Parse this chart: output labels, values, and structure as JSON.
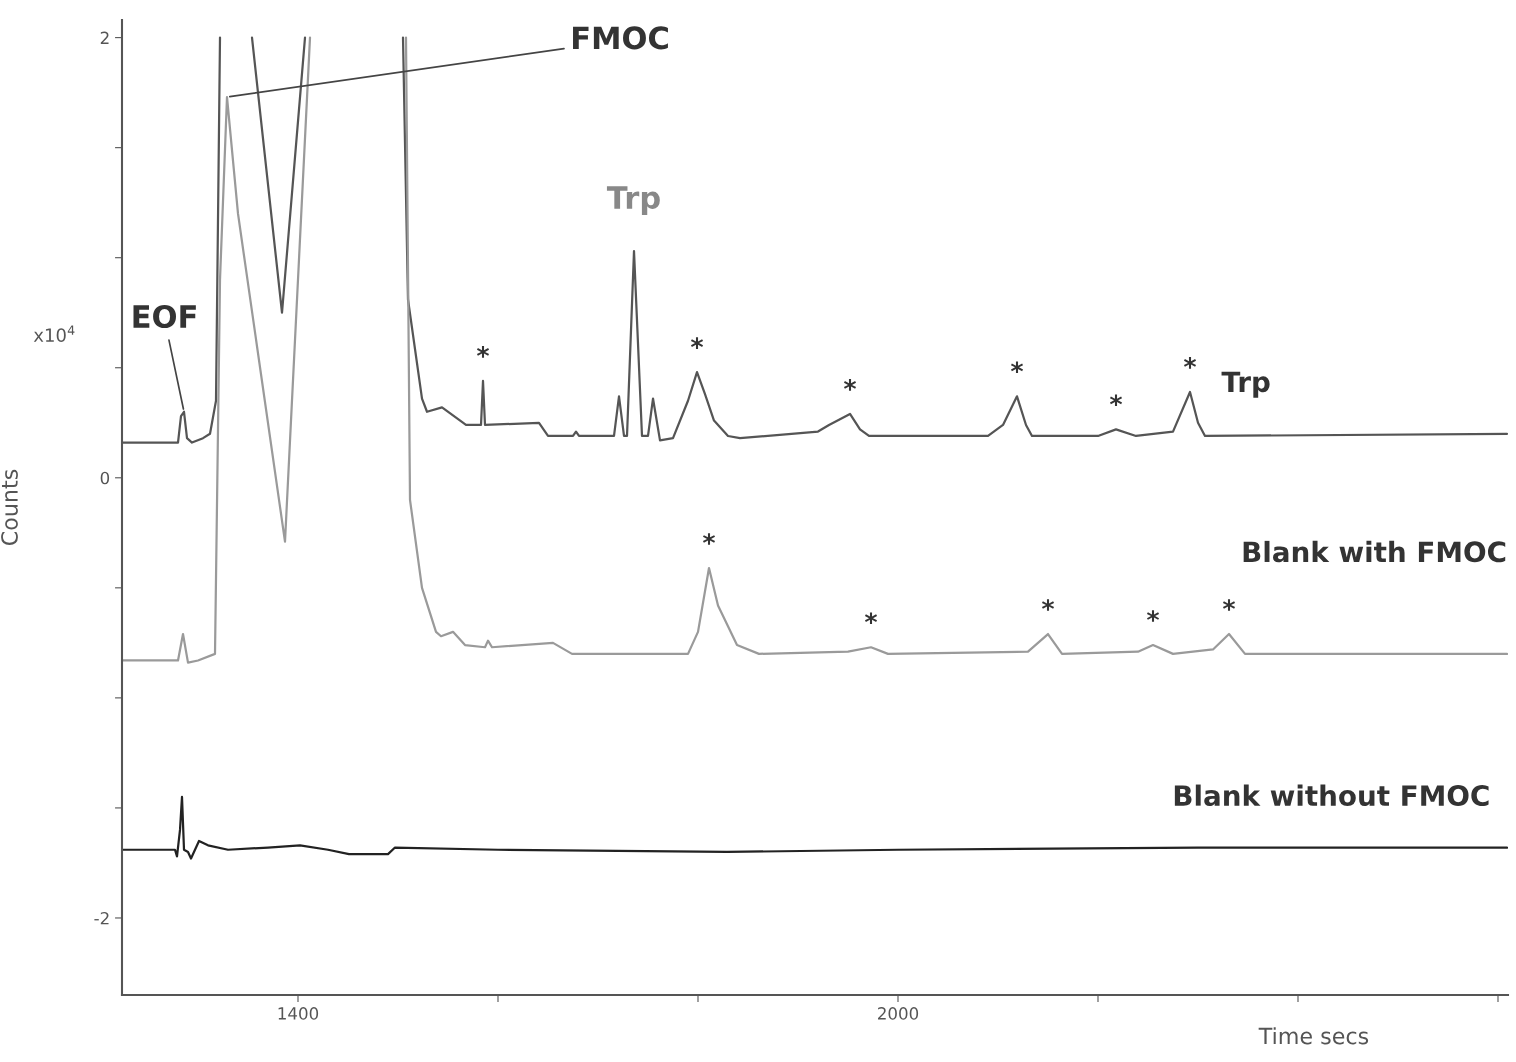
{
  "chart_data": {
    "type": "line",
    "xlabel": "Time secs",
    "ylabel": "Counts",
    "xlim": [
      1224,
      2610
    ],
    "ylim": [
      -2.35,
      2.08
    ],
    "xticks": [
      1400,
      {
        "value": 1600,
        "label": null
      },
      {
        "value": 1800,
        "label": null
      },
      2000,
      {
        "value": 2200,
        "label": null
      },
      {
        "value": 2400,
        "label": null
      },
      {
        "value": 2600,
        "label": null
      }
    ],
    "yticks": [
      -2,
      {
        "value": -1.5,
        "label": null
      },
      {
        "value": -1,
        "label": null
      },
      {
        "value": -0.5,
        "label": null
      },
      0,
      {
        "value": 0.5,
        "label": null
      },
      {
        "value": 1,
        "label": null
      },
      {
        "value": 1.5,
        "label": null
      },
      2
    ],
    "grid": false,
    "series": [
      {
        "name": "Trp",
        "color": "#555555",
        "x": [
          1224,
          1280,
          1283,
          1286,
          1289,
          1294,
          1305,
          1312,
          1318,
          1322,
          1338,
          1354,
          1384,
          1407,
          1455,
          1505,
          1510,
          1524,
          1529,
          1544,
          1568,
          1583,
          1585,
          1587,
          1641,
          1650,
          1675,
          1678,
          1681,
          1716,
          1721,
          1726,
          1729,
          1736,
          1744,
          1750,
          1755,
          1762,
          1775,
          1790,
          1799,
          1807,
          1816,
          1830,
          1842,
          1920,
          1931,
          1952,
          1962,
          1971,
          2090,
          2105,
          2119,
          2128,
          2134,
          2200,
          2218,
          2238,
          2275,
          2292,
          2300,
          2307,
          2609
        ],
        "values": [
          0.16,
          0.16,
          0.28,
          0.3,
          0.18,
          0.16,
          0.18,
          0.2,
          0.35,
          2.0,
          null,
          2.0,
          0.75,
          2.0,
          null,
          2.0,
          0.81,
          0.36,
          0.3,
          0.32,
          0.24,
          0.24,
          0.44,
          0.24,
          0.25,
          0.19,
          0.19,
          0.21,
          0.19,
          0.19,
          0.37,
          0.19,
          0.19,
          1.03,
          0.19,
          0.19,
          0.36,
          0.17,
          0.18,
          0.35,
          0.48,
          0.38,
          0.26,
          0.19,
          0.18,
          0.21,
          0.24,
          0.29,
          0.22,
          0.19,
          0.19,
          0.24,
          0.37,
          0.24,
          0.19,
          0.19,
          0.22,
          0.19,
          0.21,
          0.39,
          0.25,
          0.19,
          0.2
        ]
      },
      {
        "name": "Blank with FMOC",
        "color": "#9a9a9a",
        "x": [
          1224,
          1280,
          1285,
          1290,
          1300,
          1317,
          1322,
          1329,
          1340,
          1387,
          1412,
          1460,
          1508,
          1512,
          1524,
          1538,
          1543,
          1555,
          1567,
          1587,
          1590,
          1594,
          1655,
          1674,
          1790,
          1800,
          1811,
          1820,
          1839,
          1861,
          1950,
          1973,
          1990,
          2130,
          2150,
          2164,
          2240,
          2255,
          2275,
          2315,
          2331,
          2347,
          2609
        ],
        "values": [
          -0.83,
          -0.83,
          -0.71,
          -0.84,
          -0.83,
          -0.8,
          0.9,
          1.73,
          1.2,
          -0.29,
          2.0,
          null,
          2.0,
          -0.1,
          -0.5,
          -0.7,
          -0.72,
          -0.7,
          -0.76,
          -0.77,
          -0.74,
          -0.77,
          -0.75,
          -0.8,
          -0.8,
          -0.7,
          -0.41,
          -0.58,
          -0.76,
          -0.8,
          -0.79,
          -0.77,
          -0.8,
          -0.79,
          -0.71,
          -0.8,
          -0.79,
          -0.76,
          -0.8,
          -0.78,
          -0.71,
          -0.8,
          -0.8
        ]
      },
      {
        "name": "Blank without FMOC",
        "color": "#222222",
        "x": [
          1224,
          1277,
          1279,
          1282,
          1284,
          1286,
          1290,
          1293,
          1297,
          1301,
          1310,
          1330,
          1370,
          1402,
          1430,
          1451,
          1490,
          1497,
          1600,
          1829,
          2000,
          2300,
          2609
        ],
        "values": [
          -1.69,
          -1.69,
          -1.72,
          -1.6,
          -1.45,
          -1.69,
          -1.7,
          -1.73,
          -1.69,
          -1.65,
          -1.67,
          -1.69,
          -1.68,
          -1.67,
          -1.69,
          -1.71,
          -1.71,
          -1.68,
          -1.69,
          -1.7,
          -1.69,
          -1.68,
          -1.68
        ]
      }
    ],
    "annotations": [
      "x10$^{4}$",
      {
        "text": "FMOC",
        "x": 1329,
        "y": 1.73
      },
      {
        "text": "Trp",
        "x": 1736,
        "y": 1.03
      },
      {
        "text": "EOF",
        "x": 1286,
        "y": 0.3
      },
      {
        "text": "*",
        "x": 1585,
        "y": 0.44
      },
      {
        "text": "*",
        "x": 1799,
        "y": 0.48
      },
      {
        "text": "*",
        "x": 1952,
        "y": 0.29
      },
      {
        "text": "*",
        "x": 2119,
        "y": 0.37
      },
      {
        "text": "*",
        "x": 2218,
        "y": 0.22
      },
      {
        "text": "*",
        "x": 2292,
        "y": 0.39
      },
      {
        "text": "*",
        "x": 1811,
        "y": -0.41
      },
      {
        "text": "*",
        "x": 1973,
        "y": -0.77
      },
      {
        "text": "*",
        "x": 2150,
        "y": -0.71
      },
      {
        "text": "*",
        "x": 2255,
        "y": -0.76
      },
      {
        "text": "*",
        "x": 2331,
        "y": -0.71
      }
    ]
  }
}
